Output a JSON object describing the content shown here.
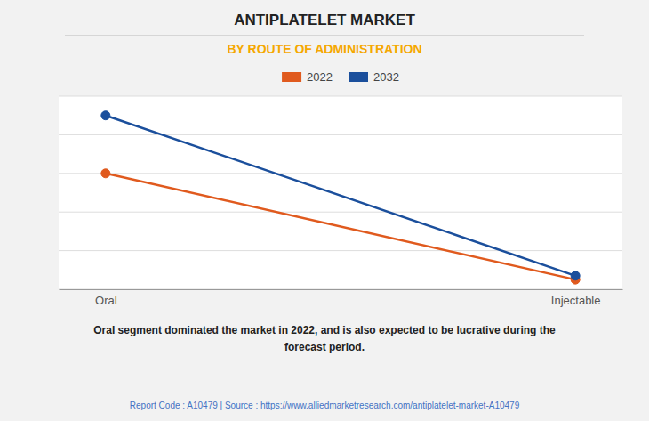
{
  "chart_data": {
    "type": "line",
    "title": "ANTIPLATELET MARKET",
    "subtitle": "BY ROUTE OF ADMINISTRATION",
    "categories": [
      "Oral",
      "Injectable"
    ],
    "series": [
      {
        "name": "2022",
        "color": "#E05A1E",
        "values": [
          0.6,
          0.05
        ]
      },
      {
        "name": "2032",
        "color": "#1B4F9C",
        "values": [
          0.9,
          0.07
        ]
      }
    ],
    "ylim": [
      0.0,
      1.0
    ],
    "yticks": [
      0,
      0.2,
      0.4,
      0.6,
      0.8,
      1.0
    ],
    "grid": true,
    "tick_labels": "x",
    "legend": "top",
    "marker": "circle",
    "annotations": [
      "Oral segment dominated the market in 2022, and is also expected to be lucrative during the\nforecast period.",
      "Report Code : A10479  |  Source : https://www.alliedmarketresearch.com/antiplatelet-market-A10479"
    ]
  }
}
